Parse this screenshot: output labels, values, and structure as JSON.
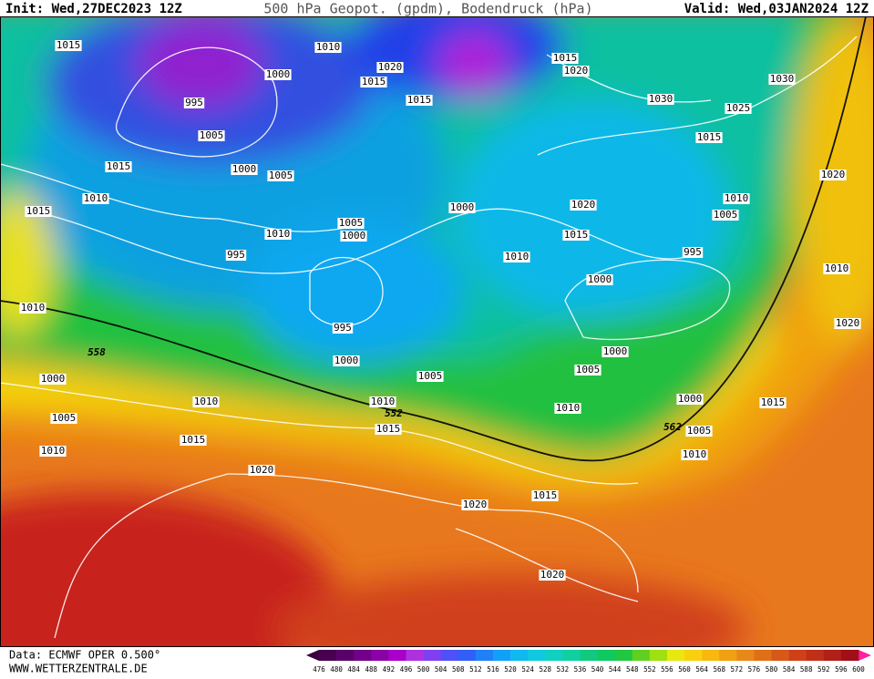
{
  "header": {
    "init": "Init: Wed,27DEC2023 12Z",
    "title": "500 hPa Geopot. (gpdm), Bodendruck (hPa)",
    "valid": "Valid: Wed,03JAN2024 12Z"
  },
  "map": {
    "isobar_labels": [
      1015,
      1010,
      1020,
      1015,
      1000,
      995,
      1005,
      1015,
      1000,
      1005,
      1015,
      1015,
      1020,
      1030,
      1030,
      1025,
      1015,
      1020,
      1010,
      1015,
      1000,
      1005,
      1000,
      1010,
      1020,
      1010,
      1005,
      1015,
      1010,
      995,
      995,
      1010,
      1000,
      1010,
      995,
      1020,
      1000,
      1000,
      1005,
      1005,
      1000,
      1010,
      1010,
      1000,
      1015,
      1010,
      1005,
      1015,
      1005,
      1015,
      1010,
      1010,
      1020,
      1015,
      1020,
      1020
    ],
    "contour_labels": [
      558,
      552,
      562
    ]
  },
  "footer": {
    "source": "Data: ECMWF OPER 0.500°",
    "website": "WWW.WETTERZENTRALE.DE"
  },
  "legend": {
    "levels": [
      476,
      480,
      484,
      488,
      492,
      496,
      500,
      504,
      508,
      512,
      516,
      520,
      524,
      528,
      532,
      536,
      540,
      544,
      548,
      552,
      556,
      560,
      564,
      568,
      572,
      576,
      580,
      584,
      588,
      592,
      596,
      600
    ]
  }
}
